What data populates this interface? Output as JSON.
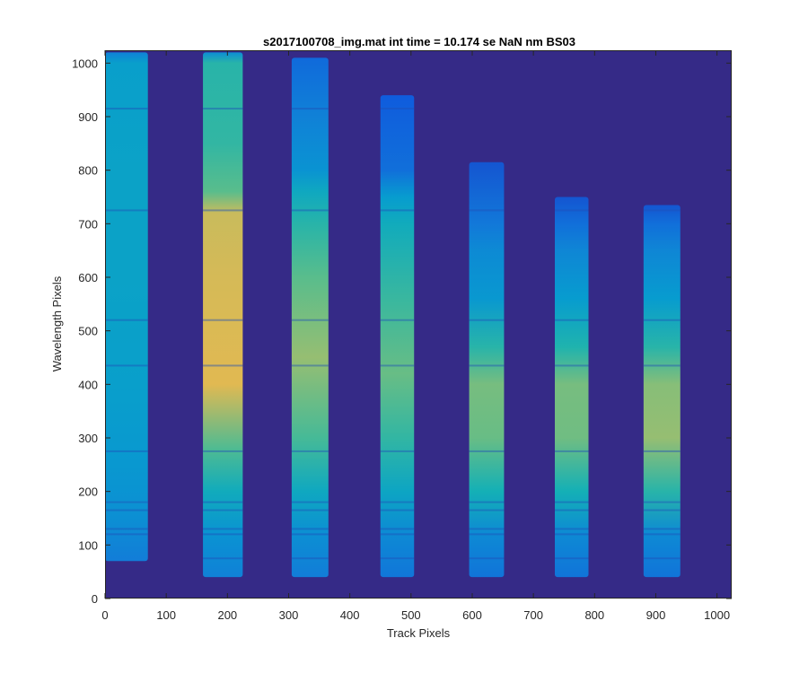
{
  "chart_data": {
    "type": "heatmap",
    "title": "s2017100708_img.mat int time = 10.174 se  NaN nm BS03",
    "xlabel": "Track Pixels",
    "ylabel": "Wavelength Pixels",
    "xlim": [
      0,
      1024
    ],
    "ylim": [
      0,
      1024
    ],
    "xticks": [
      0,
      100,
      200,
      300,
      400,
      500,
      600,
      700,
      800,
      900,
      1000
    ],
    "yticks": [
      0,
      100,
      200,
      300,
      400,
      500,
      600,
      700,
      800,
      900,
      1000
    ],
    "grid": false,
    "colormap": "parula",
    "background_color": "#352a87",
    "absorption_line_rows": [
      75,
      120,
      130,
      165,
      180,
      275,
      435,
      520,
      725,
      915
    ],
    "tracks": [
      {
        "x_start": 0,
        "x_end": 70,
        "y_min": 70,
        "y_max": 1020,
        "intensity": [
          [
            70,
            0.28
          ],
          [
            150,
            0.36
          ],
          [
            250,
            0.4
          ],
          [
            400,
            0.44
          ],
          [
            600,
            0.46
          ],
          [
            800,
            0.46
          ],
          [
            1000,
            0.44
          ],
          [
            1020,
            0.3
          ]
        ]
      },
      {
        "x_start": 160,
        "x_end": 225,
        "y_min": 40,
        "y_max": 1020,
        "intensity": [
          [
            40,
            0.3
          ],
          [
            120,
            0.38
          ],
          [
            200,
            0.52
          ],
          [
            280,
            0.68
          ],
          [
            400,
            0.9
          ],
          [
            600,
            0.88
          ],
          [
            720,
            0.86
          ],
          [
            760,
            0.7
          ],
          [
            850,
            0.62
          ],
          [
            1000,
            0.6
          ],
          [
            1020,
            0.35
          ]
        ]
      },
      {
        "x_start": 305,
        "x_end": 365,
        "y_min": 40,
        "y_max": 1010,
        "intensity": [
          [
            40,
            0.28
          ],
          [
            120,
            0.36
          ],
          [
            200,
            0.5
          ],
          [
            300,
            0.66
          ],
          [
            450,
            0.78
          ],
          [
            600,
            0.7
          ],
          [
            700,
            0.6
          ],
          [
            760,
            0.5
          ],
          [
            800,
            0.38
          ],
          [
            900,
            0.3
          ],
          [
            1010,
            0.2
          ]
        ]
      },
      {
        "x_start": 450,
        "x_end": 505,
        "y_min": 40,
        "y_max": 940,
        "intensity": [
          [
            40,
            0.25
          ],
          [
            120,
            0.34
          ],
          [
            200,
            0.48
          ],
          [
            300,
            0.62
          ],
          [
            420,
            0.72
          ],
          [
            550,
            0.64
          ],
          [
            700,
            0.52
          ],
          [
            750,
            0.42
          ],
          [
            800,
            0.22
          ],
          [
            940,
            0.14
          ]
        ]
      },
      {
        "x_start": 595,
        "x_end": 652,
        "y_min": 40,
        "y_max": 815,
        "intensity": [
          [
            40,
            0.24
          ],
          [
            120,
            0.34
          ],
          [
            200,
            0.55
          ],
          [
            300,
            0.72
          ],
          [
            400,
            0.74
          ],
          [
            470,
            0.6
          ],
          [
            560,
            0.4
          ],
          [
            650,
            0.34
          ],
          [
            700,
            0.26
          ],
          [
            815,
            0.12
          ]
        ]
      },
      {
        "x_start": 735,
        "x_end": 790,
        "y_min": 40,
        "y_max": 750,
        "intensity": [
          [
            40,
            0.24
          ],
          [
            120,
            0.34
          ],
          [
            200,
            0.55
          ],
          [
            300,
            0.73
          ],
          [
            400,
            0.74
          ],
          [
            470,
            0.58
          ],
          [
            560,
            0.42
          ],
          [
            650,
            0.32
          ],
          [
            700,
            0.22
          ],
          [
            750,
            0.12
          ]
        ]
      },
      {
        "x_start": 880,
        "x_end": 940,
        "y_min": 40,
        "y_max": 735,
        "intensity": [
          [
            40,
            0.24
          ],
          [
            120,
            0.34
          ],
          [
            200,
            0.6
          ],
          [
            300,
            0.78
          ],
          [
            400,
            0.76
          ],
          [
            470,
            0.6
          ],
          [
            560,
            0.42
          ],
          [
            650,
            0.32
          ],
          [
            700,
            0.22
          ],
          [
            735,
            0.12
          ]
        ]
      }
    ]
  }
}
